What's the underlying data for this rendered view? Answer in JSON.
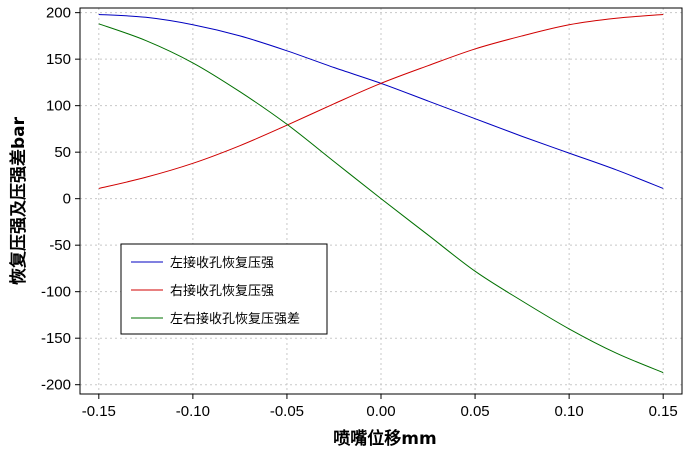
{
  "chart_data": {
    "type": "line",
    "xlabel": "喷嘴位移mm",
    "ylabel": "恢复压强及压强差bar",
    "xlim": [
      -0.16,
      0.16
    ],
    "ylim": [
      -210,
      205
    ],
    "xticks": [
      -0.15,
      -0.1,
      -0.05,
      0.0,
      0.05,
      0.1,
      0.15
    ],
    "xtick_labels": [
      "-0.15",
      "-0.10",
      "-0.05",
      "0.00",
      "0.05",
      "0.10",
      "0.15"
    ],
    "yticks": [
      200,
      150,
      100,
      50,
      0,
      -50,
      -100,
      -150,
      -200
    ],
    "ytick_labels": [
      "200",
      "150",
      "100",
      "50",
      "0",
      "-50",
      "-100",
      "-150",
      "-200"
    ],
    "grid": true,
    "legend_position": "lower-left",
    "x": [
      -0.15,
      -0.125,
      -0.1,
      -0.075,
      -0.05,
      -0.025,
      0.0,
      0.025,
      0.05,
      0.075,
      0.1,
      0.125,
      0.15
    ],
    "series": [
      {
        "name": "左接收孔恢复压强",
        "color": "#0000c0",
        "values": [
          198,
          195,
          187,
          175,
          159,
          141,
          124,
          105,
          86,
          67,
          49,
          31,
          11
        ]
      },
      {
        "name": "右接收孔恢复压强",
        "color": "#d00000",
        "values": [
          11,
          23,
          38,
          57,
          79,
          102,
          124,
          143,
          161,
          175,
          187,
          194,
          198
        ]
      },
      {
        "name": "左右接收孔恢复压强差",
        "color": "#007000",
        "values": [
          188,
          170,
          146,
          115,
          80,
          40,
          0,
          -39,
          -78,
          -110,
          -140,
          -166,
          -187
        ]
      }
    ]
  }
}
